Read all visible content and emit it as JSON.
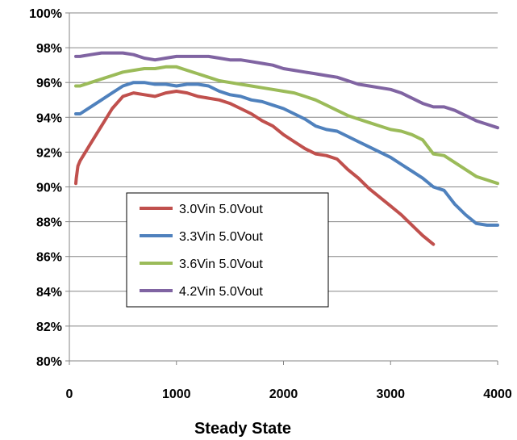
{
  "chart_data": {
    "type": "line",
    "title": "",
    "xlabel": "Steady State",
    "ylabel": "",
    "xlim": [
      0,
      4000
    ],
    "ylim": [
      80,
      100
    ],
    "xticks": [
      0,
      1000,
      2000,
      3000,
      4000
    ],
    "yticks": [
      80,
      82,
      84,
      86,
      88,
      90,
      92,
      94,
      96,
      98,
      100
    ],
    "ytick_suffix": "%",
    "grid": "horizontal",
    "legend_position": "center-left",
    "series": [
      {
        "name": "3.0Vin 5.0Vout",
        "color": "#c0504d",
        "x": [
          60,
          65,
          80,
          100,
          150,
          200,
          300,
          400,
          500,
          600,
          700,
          800,
          900,
          1000,
          1100,
          1200,
          1300,
          1400,
          1500,
          1600,
          1700,
          1800,
          1900,
          2000,
          2100,
          2200,
          2300,
          2400,
          2500,
          2600,
          2700,
          2800,
          2900,
          3000,
          3100,
          3200,
          3300,
          3400
        ],
        "y": [
          90.2,
          90.5,
          91.2,
          91.5,
          92.0,
          92.5,
          93.5,
          94.5,
          95.2,
          95.4,
          95.3,
          95.2,
          95.4,
          95.5,
          95.4,
          95.2,
          95.1,
          95.0,
          94.8,
          94.5,
          94.2,
          93.8,
          93.5,
          93.0,
          92.6,
          92.2,
          91.9,
          91.8,
          91.6,
          91.0,
          90.5,
          89.9,
          89.4,
          88.9,
          88.4,
          87.8,
          87.2,
          86.7
        ]
      },
      {
        "name": "3.3Vin 5.0Vout",
        "color": "#4f81bd",
        "x": [
          60,
          100,
          200,
          300,
          400,
          500,
          600,
          700,
          800,
          900,
          1000,
          1100,
          1200,
          1300,
          1400,
          1500,
          1600,
          1700,
          1800,
          1900,
          2000,
          2100,
          2200,
          2300,
          2400,
          2500,
          2600,
          2700,
          2800,
          2900,
          3000,
          3100,
          3200,
          3300,
          3400,
          3500,
          3600,
          3700,
          3800,
          3900,
          4000
        ],
        "y": [
          94.2,
          94.2,
          94.6,
          95.0,
          95.4,
          95.8,
          96.0,
          96.0,
          95.9,
          95.9,
          95.8,
          95.9,
          95.9,
          95.8,
          95.5,
          95.3,
          95.2,
          95.0,
          94.9,
          94.7,
          94.5,
          94.2,
          93.9,
          93.5,
          93.3,
          93.2,
          92.9,
          92.6,
          92.3,
          92.0,
          91.7,
          91.3,
          90.9,
          90.5,
          90.0,
          89.8,
          89.0,
          88.4,
          87.9,
          87.8,
          87.8
        ]
      },
      {
        "name": "3.6Vin 5.0Vout",
        "color": "#9bbb59",
        "x": [
          60,
          100,
          200,
          300,
          400,
          500,
          600,
          700,
          800,
          900,
          1000,
          1100,
          1200,
          1300,
          1400,
          1500,
          1600,
          1700,
          1800,
          1900,
          2000,
          2100,
          2200,
          2300,
          2400,
          2500,
          2600,
          2700,
          2800,
          2900,
          3000,
          3100,
          3200,
          3300,
          3400,
          3500,
          3600,
          3700,
          3800,
          3900,
          4000
        ],
        "y": [
          95.8,
          95.8,
          96.0,
          96.2,
          96.4,
          96.6,
          96.7,
          96.8,
          96.8,
          96.9,
          96.9,
          96.7,
          96.5,
          96.3,
          96.1,
          96.0,
          95.9,
          95.8,
          95.7,
          95.6,
          95.5,
          95.4,
          95.2,
          95.0,
          94.7,
          94.4,
          94.1,
          93.9,
          93.7,
          93.5,
          93.3,
          93.2,
          93.0,
          92.7,
          91.9,
          91.8,
          91.4,
          91.0,
          90.6,
          90.4,
          90.2
        ]
      },
      {
        "name": "4.2Vin 5.0Vout",
        "color": "#8064a2",
        "x": [
          60,
          100,
          200,
          300,
          400,
          500,
          600,
          700,
          800,
          900,
          1000,
          1100,
          1200,
          1300,
          1400,
          1500,
          1600,
          1700,
          1800,
          1900,
          2000,
          2100,
          2200,
          2300,
          2400,
          2500,
          2600,
          2700,
          2800,
          2900,
          3000,
          3100,
          3200,
          3300,
          3400,
          3500,
          3600,
          3700,
          3800,
          3900,
          4000
        ],
        "y": [
          97.5,
          97.5,
          97.6,
          97.7,
          97.7,
          97.7,
          97.6,
          97.4,
          97.3,
          97.4,
          97.5,
          97.5,
          97.5,
          97.5,
          97.4,
          97.3,
          97.3,
          97.2,
          97.1,
          97.0,
          96.8,
          96.7,
          96.6,
          96.5,
          96.4,
          96.3,
          96.1,
          95.9,
          95.8,
          95.7,
          95.6,
          95.4,
          95.1,
          94.8,
          94.6,
          94.6,
          94.4,
          94.1,
          93.8,
          93.6,
          93.4
        ]
      }
    ]
  }
}
